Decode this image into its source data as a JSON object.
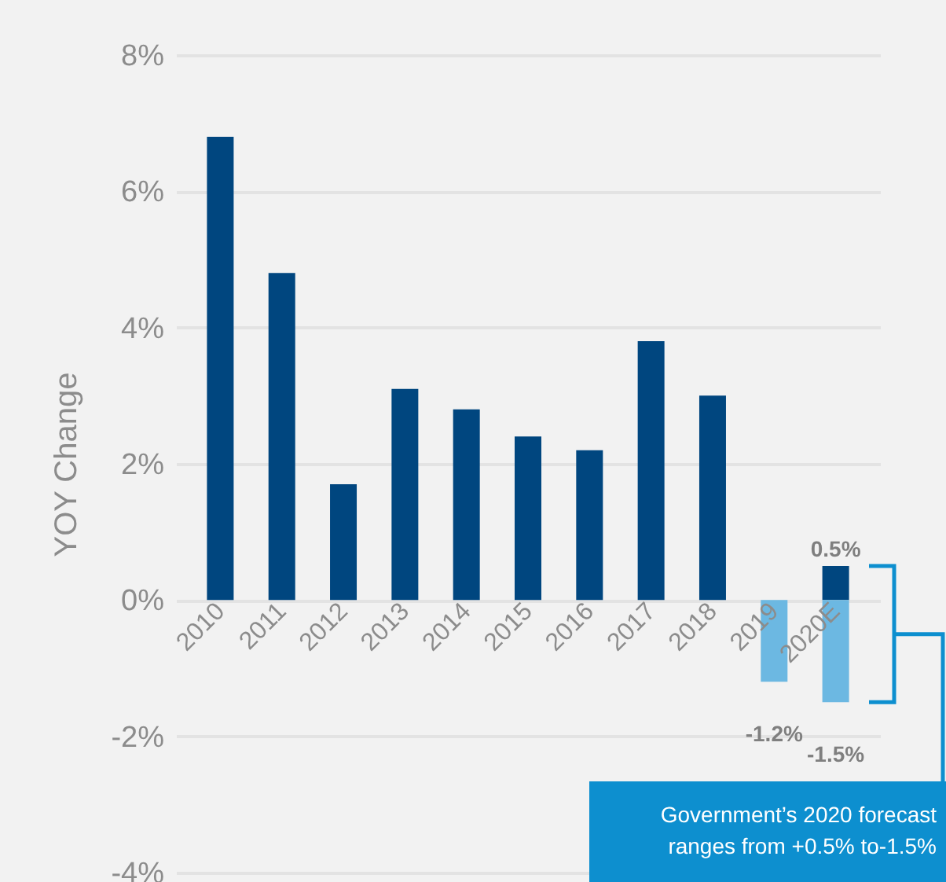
{
  "chart_data": {
    "type": "bar",
    "ylabel": "YOY Change",
    "categories": [
      "2010",
      "2011",
      "2012",
      "2013",
      "2014",
      "2015",
      "2016",
      "2017",
      "2018",
      "2019",
      "2020E"
    ],
    "stacked": true,
    "series": [
      {
        "color": "#00467f",
        "values": [
          6.8,
          4.8,
          1.7,
          3.1,
          2.8,
          2.4,
          2.2,
          3.8,
          3.0,
          null,
          0.5
        ],
        "value_labels": [
          null,
          null,
          null,
          null,
          null,
          null,
          null,
          null,
          null,
          null,
          "0.5%"
        ]
      },
      {
        "color": "#6cb8e2",
        "values": [
          null,
          null,
          null,
          null,
          null,
          null,
          null,
          null,
          null,
          -1.2,
          -1.5
        ],
        "value_labels": [
          null,
          null,
          null,
          null,
          null,
          null,
          null,
          null,
          null,
          "-1.2%",
          "-1.5%"
        ]
      }
    ],
    "ylim": [
      -4,
      8
    ],
    "yticks": [
      {
        "value": -4,
        "label": "-4%"
      },
      {
        "value": -2,
        "label": "-2%"
      },
      {
        "value": 0,
        "label": "0%"
      },
      {
        "value": 2,
        "label": "2%"
      },
      {
        "value": 4,
        "label": "4%"
      },
      {
        "value": 6,
        "label": "6%"
      },
      {
        "value": 8,
        "label": "8%"
      }
    ],
    "grid": "y",
    "annotations": [
      "Government’s  2020 forecast ranges from +0.5% to-1.5%"
    ]
  }
}
